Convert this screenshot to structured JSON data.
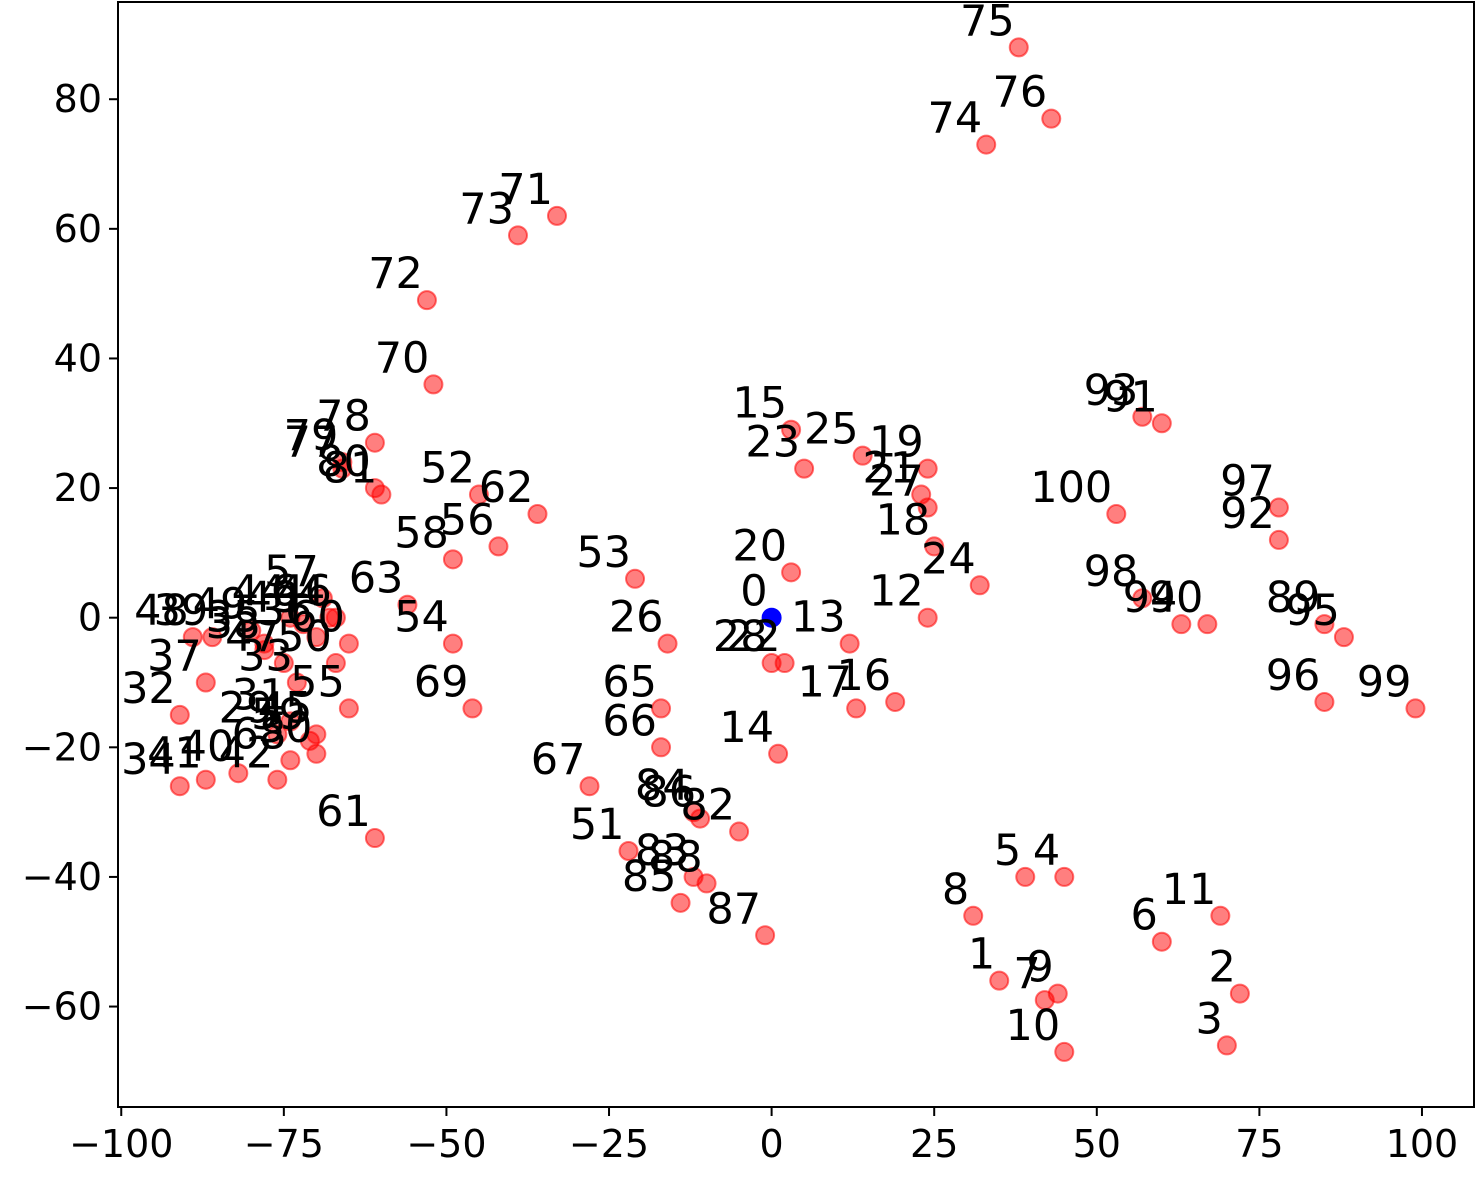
{
  "chart_data": {
    "type": "scatter",
    "title": "",
    "xlabel": "",
    "ylabel": "",
    "xlim": [
      -100.5,
      108
    ],
    "ylim": [
      -75.5,
      95
    ],
    "x_ticks": [
      -100,
      -75,
      -50,
      -25,
      0,
      25,
      50,
      75,
      100
    ],
    "x_tick_labels": [
      "−100",
      "−75",
      "−50",
      "−25",
      "0",
      "25",
      "50",
      "75",
      "100"
    ],
    "y_ticks": [
      -60,
      -40,
      -20,
      0,
      20,
      40,
      60,
      80
    ],
    "y_tick_labels": [
      "−60",
      "−40",
      "−20",
      "0",
      "20",
      "40",
      "60",
      "80"
    ],
    "grid": false,
    "colors": {
      "highlight": "#0000ff",
      "points": "#ff0000",
      "points_edge": "#ff0000",
      "frame": "#000000"
    },
    "series": [
      {
        "label_side": "left",
        "points": [
          {
            "label": "0",
            "x": 0,
            "y": 0,
            "color": "#0000ff"
          },
          {
            "label": "1",
            "x": 35,
            "y": -56
          },
          {
            "label": "2",
            "x": 72,
            "y": -58
          },
          {
            "label": "3",
            "x": 70,
            "y": -66
          },
          {
            "label": "4",
            "x": 45,
            "y": -40
          },
          {
            "label": "5",
            "x": 39,
            "y": -40
          },
          {
            "label": "6",
            "x": 60,
            "y": -50
          },
          {
            "label": "7",
            "x": 42,
            "y": -59
          },
          {
            "label": "8",
            "x": 31,
            "y": -46
          },
          {
            "label": "9",
            "x": 44,
            "y": -58
          },
          {
            "label": "10",
            "x": 45,
            "y": -67
          },
          {
            "label": "11",
            "x": 69,
            "y": -46
          },
          {
            "label": "12",
            "x": 24,
            "y": 0
          },
          {
            "label": "13",
            "x": 12,
            "y": -4
          },
          {
            "label": "14",
            "x": 1,
            "y": -21
          },
          {
            "label": "15",
            "x": 3,
            "y": 29
          },
          {
            "label": "16",
            "x": 19,
            "y": -13
          },
          {
            "label": "17",
            "x": 13,
            "y": -14
          },
          {
            "label": "18",
            "x": 25,
            "y": 11
          },
          {
            "label": "19",
            "x": 24,
            "y": 23
          },
          {
            "label": "20",
            "x": 3,
            "y": 7
          },
          {
            "label": "21",
            "x": 23,
            "y": 19
          },
          {
            "label": "22",
            "x": 2,
            "y": -7
          },
          {
            "label": "23",
            "x": 5,
            "y": 23
          },
          {
            "label": "24",
            "x": 32,
            "y": 5
          },
          {
            "label": "25",
            "x": 14,
            "y": 25
          },
          {
            "label": "26",
            "x": -16,
            "y": -4
          },
          {
            "label": "27",
            "x": 24,
            "y": 17
          },
          {
            "label": "28",
            "x": 0,
            "y": -7
          },
          {
            "label": "29",
            "x": -76,
            "y": -18
          },
          {
            "label": "30",
            "x": -70,
            "y": -21
          },
          {
            "label": "31",
            "x": -74,
            "y": -16
          },
          {
            "label": "32",
            "x": -91,
            "y": -15
          },
          {
            "label": "33",
            "x": -73,
            "y": -10
          },
          {
            "label": "34",
            "x": -91,
            "y": -26
          },
          {
            "label": "35",
            "x": -78,
            "y": -4
          },
          {
            "label": "36",
            "x": -70,
            "y": -3
          },
          {
            "label": "37",
            "x": -87,
            "y": -10
          },
          {
            "label": "38",
            "x": -78,
            "y": -5
          },
          {
            "label": "39",
            "x": -86,
            "y": -3
          },
          {
            "label": "40",
            "x": -82,
            "y": -24
          },
          {
            "label": "41",
            "x": -87,
            "y": -25
          },
          {
            "label": "42",
            "x": -76,
            "y": -25
          },
          {
            "label": "43",
            "x": -72,
            "y": -1
          },
          {
            "label": "44",
            "x": -74,
            "y": 0
          },
          {
            "label": "45",
            "x": -70,
            "y": -18
          },
          {
            "label": "46",
            "x": -67,
            "y": 0
          },
          {
            "label": "47",
            "x": -75,
            "y": -7
          },
          {
            "label": "48",
            "x": -89,
            "y": -3
          },
          {
            "label": "49",
            "x": -80,
            "y": -2
          },
          {
            "label": "50",
            "x": -67,
            "y": -7
          },
          {
            "label": "51",
            "x": -22,
            "y": -36
          },
          {
            "label": "52",
            "x": -45,
            "y": 19
          },
          {
            "label": "53",
            "x": -21,
            "y": 6
          },
          {
            "label": "54",
            "x": -49,
            "y": -4
          },
          {
            "label": "55",
            "x": -65,
            "y": -14
          },
          {
            "label": "56",
            "x": -42,
            "y": 11
          },
          {
            "label": "57",
            "x": -69,
            "y": 3
          },
          {
            "label": "58",
            "x": -49,
            "y": 9
          },
          {
            "label": "59",
            "x": -71,
            "y": -19
          },
          {
            "label": "60",
            "x": -65,
            "y": -4
          },
          {
            "label": "61",
            "x": -61,
            "y": -34
          },
          {
            "label": "62",
            "x": -36,
            "y": 16
          },
          {
            "label": "63",
            "x": -56,
            "y": 2
          },
          {
            "label": "64",
            "x": -68,
            "y": 0
          },
          {
            "label": "65",
            "x": -17,
            "y": -14
          },
          {
            "label": "66",
            "x": -17,
            "y": -20
          },
          {
            "label": "67",
            "x": -28,
            "y": -26
          },
          {
            "label": "68",
            "x": -74,
            "y": -22
          },
          {
            "label": "69",
            "x": -46,
            "y": -14
          },
          {
            "label": "70",
            "x": -52,
            "y": 36
          },
          {
            "label": "71",
            "x": -33,
            "y": 62
          },
          {
            "label": "72",
            "x": -53,
            "y": 49
          },
          {
            "label": "73",
            "x": -39,
            "y": 59
          },
          {
            "label": "74",
            "x": 33,
            "y": 73
          },
          {
            "label": "75",
            "x": 38,
            "y": 88
          },
          {
            "label": "76",
            "x": 43,
            "y": 77
          },
          {
            "label": "77",
            "x": -66,
            "y": 23
          },
          {
            "label": "78",
            "x": -61,
            "y": 27
          },
          {
            "label": "79",
            "x": -66,
            "y": 24
          },
          {
            "label": "80",
            "x": -61,
            "y": 20
          },
          {
            "label": "81",
            "x": -60,
            "y": 19
          },
          {
            "label": "82",
            "x": -5,
            "y": -33
          },
          {
            "label": "83",
            "x": -12,
            "y": -40
          },
          {
            "label": "84",
            "x": -12,
            "y": -30
          },
          {
            "label": "85",
            "x": -14,
            "y": -44
          },
          {
            "label": "86",
            "x": -11,
            "y": -31
          },
          {
            "label": "87",
            "x": -1,
            "y": -49
          },
          {
            "label": "88",
            "x": -10,
            "y": -41
          },
          {
            "label": "89",
            "x": 85,
            "y": -1
          },
          {
            "label": "90",
            "x": 67,
            "y": -1
          },
          {
            "label": "91",
            "x": 60,
            "y": 30
          },
          {
            "label": "92",
            "x": 78,
            "y": 12
          },
          {
            "label": "93",
            "x": 57,
            "y": 31
          },
          {
            "label": "94",
            "x": 63,
            "y": -1
          },
          {
            "label": "95",
            "x": 88,
            "y": -3
          },
          {
            "label": "96",
            "x": 85,
            "y": -13
          },
          {
            "label": "97",
            "x": 78,
            "y": 17
          },
          {
            "label": "98",
            "x": 57,
            "y": 3
          },
          {
            "label": "99",
            "x": 99,
            "y": -14
          },
          {
            "label": "100",
            "x": 53,
            "y": 16
          }
        ]
      }
    ]
  }
}
